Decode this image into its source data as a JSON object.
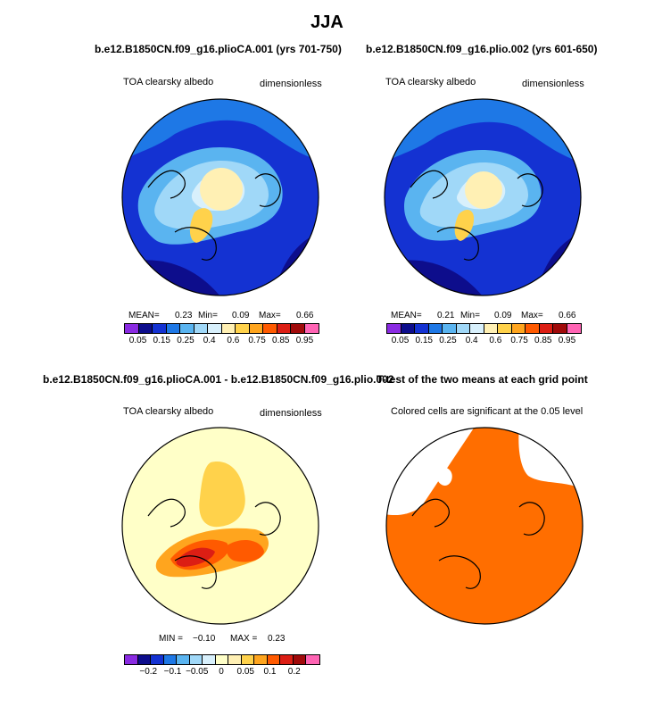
{
  "main_title": "JJA",
  "panels": [
    {
      "title": "b.e12.B1850CN.f09_g16.plioCA.001 (yrs 701-750)",
      "left_label": "TOA clearsky albedo",
      "right_label": "dimensionless",
      "stats": {
        "mean_label": "MEAN=",
        "mean": "0.23",
        "min_label": "Min=",
        "min": "0.09",
        "max_label": "Max=",
        "max": "0.66"
      },
      "ticks": [
        "0.05",
        "0.15",
        "0.25",
        "0.4",
        "0.6",
        "0.75",
        "0.85",
        "0.95"
      ]
    },
    {
      "title": "b.e12.B1850CN.f09_g16.plio.002 (yrs 601-650)",
      "left_label": "TOA clearsky albedo",
      "right_label": "dimensionless",
      "stats": {
        "mean_label": "MEAN=",
        "mean": "0.21",
        "min_label": "Min=",
        "min": "0.09",
        "max_label": "Max=",
        "max": "0.66"
      },
      "ticks": [
        "0.05",
        "0.15",
        "0.25",
        "0.4",
        "0.6",
        "0.75",
        "0.85",
        "0.95"
      ]
    },
    {
      "title": "b.e12.B1850CN.f09_g16.plioCA.001 - b.e12.B1850CN.f09_g16.plio.002",
      "left_label": "TOA clearsky albedo",
      "right_label": "dimensionless",
      "stats": {
        "min_label": "MIN =",
        "min": "−0.10",
        "max_label": "MAX =",
        "max": "0.23"
      },
      "ticks": [
        "−0.2",
        "−0.1",
        "−0.05",
        "0",
        "0.05",
        "0.1",
        "0.2"
      ]
    },
    {
      "title": "T-test of the two means at each grid point",
      "left_label": "Colored cells are significant at the 0.05 level"
    }
  ],
  "colors": {
    "abs_scale": [
      "#8a2be2",
      "#0d0d8c",
      "#1432d2",
      "#1e78e6",
      "#5ab4f0",
      "#a0d8f8",
      "#d8f0fc",
      "#fff0b4",
      "#ffd24b",
      "#ffa51e",
      "#ff5a00",
      "#dc1e14",
      "#a00a0a",
      "#ff64b4"
    ],
    "diff_scale": [
      "#8a2be2",
      "#0d0d8c",
      "#1432d2",
      "#1e78e6",
      "#5ab4f0",
      "#a0d8f8",
      "#d8f0fc",
      "#ffffc8",
      "#fff0b4",
      "#ffd24b",
      "#ffa51e",
      "#ff5a00",
      "#dc1e14",
      "#a00a0a",
      "#ff64b4"
    ],
    "ttest": "#ff6e00"
  },
  "chart_data": [
    {
      "type": "heatmap",
      "projection": "north-polar-stereographic",
      "title": "b.e12.B1850CN.f09_g16.plioCA.001 (yrs 701-750)",
      "variable": "TOA clearsky albedo",
      "units": "dimensionless",
      "mean": 0.23,
      "min": 0.09,
      "max": 0.66,
      "colorbar_levels": [
        0.05,
        0.1,
        0.15,
        0.2,
        0.25,
        0.3,
        0.4,
        0.5,
        0.6,
        0.7,
        0.75,
        0.8,
        0.85,
        0.9,
        0.95
      ]
    },
    {
      "type": "heatmap",
      "projection": "north-polar-stereographic",
      "title": "b.e12.B1850CN.f09_g16.plio.002 (yrs 601-650)",
      "variable": "TOA clearsky albedo",
      "units": "dimensionless",
      "mean": 0.21,
      "min": 0.09,
      "max": 0.66,
      "colorbar_levels": [
        0.05,
        0.1,
        0.15,
        0.2,
        0.25,
        0.3,
        0.4,
        0.5,
        0.6,
        0.7,
        0.75,
        0.8,
        0.85,
        0.9,
        0.95
      ]
    },
    {
      "type": "heatmap",
      "projection": "north-polar-stereographic",
      "title": "b.e12.B1850CN.f09_g16.plioCA.001 - b.e12.B1850CN.f09_g16.plio.002",
      "variable": "TOA clearsky albedo",
      "units": "dimensionless",
      "min": -0.1,
      "max": 0.23,
      "colorbar_ticks": [
        -0.2,
        -0.1,
        -0.05,
        0,
        0.05,
        0.1,
        0.2
      ]
    },
    {
      "type": "heatmap",
      "projection": "north-polar-stereographic",
      "title": "T-test of the two means at each grid point",
      "note": "Colored cells are significant at the 0.05 level"
    }
  ]
}
